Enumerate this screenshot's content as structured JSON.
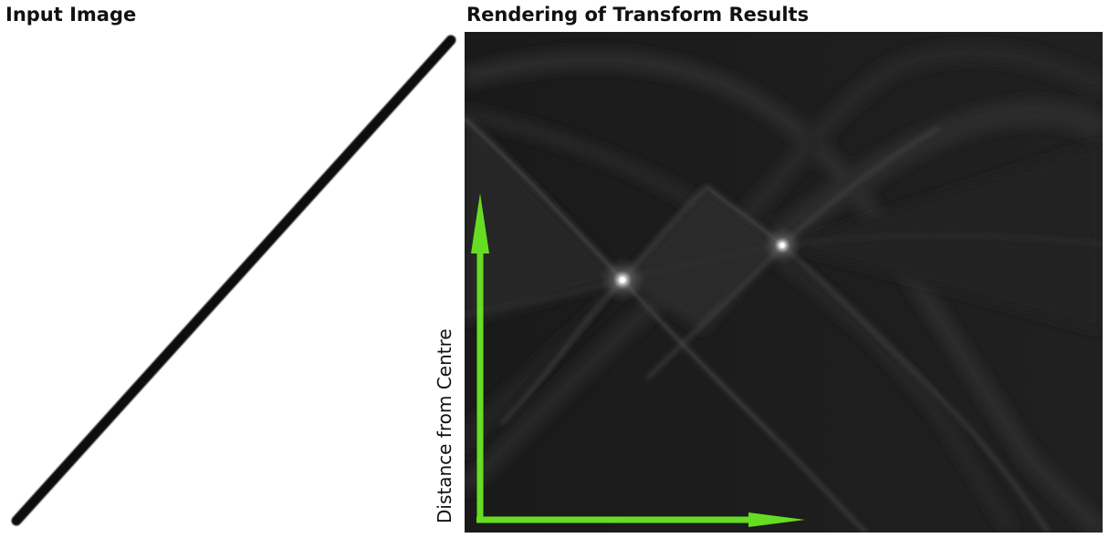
{
  "titles": {
    "input": "Input Image",
    "transform": "Rendering of Transform Results"
  },
  "axes": {
    "y_label": "Distance from Centre",
    "x_label": ""
  },
  "colors": {
    "background": "#ffffff",
    "line_stroke": "#0a0a0a",
    "transform_background": "#1c1c1c",
    "arrow": "#66dd22"
  }
}
